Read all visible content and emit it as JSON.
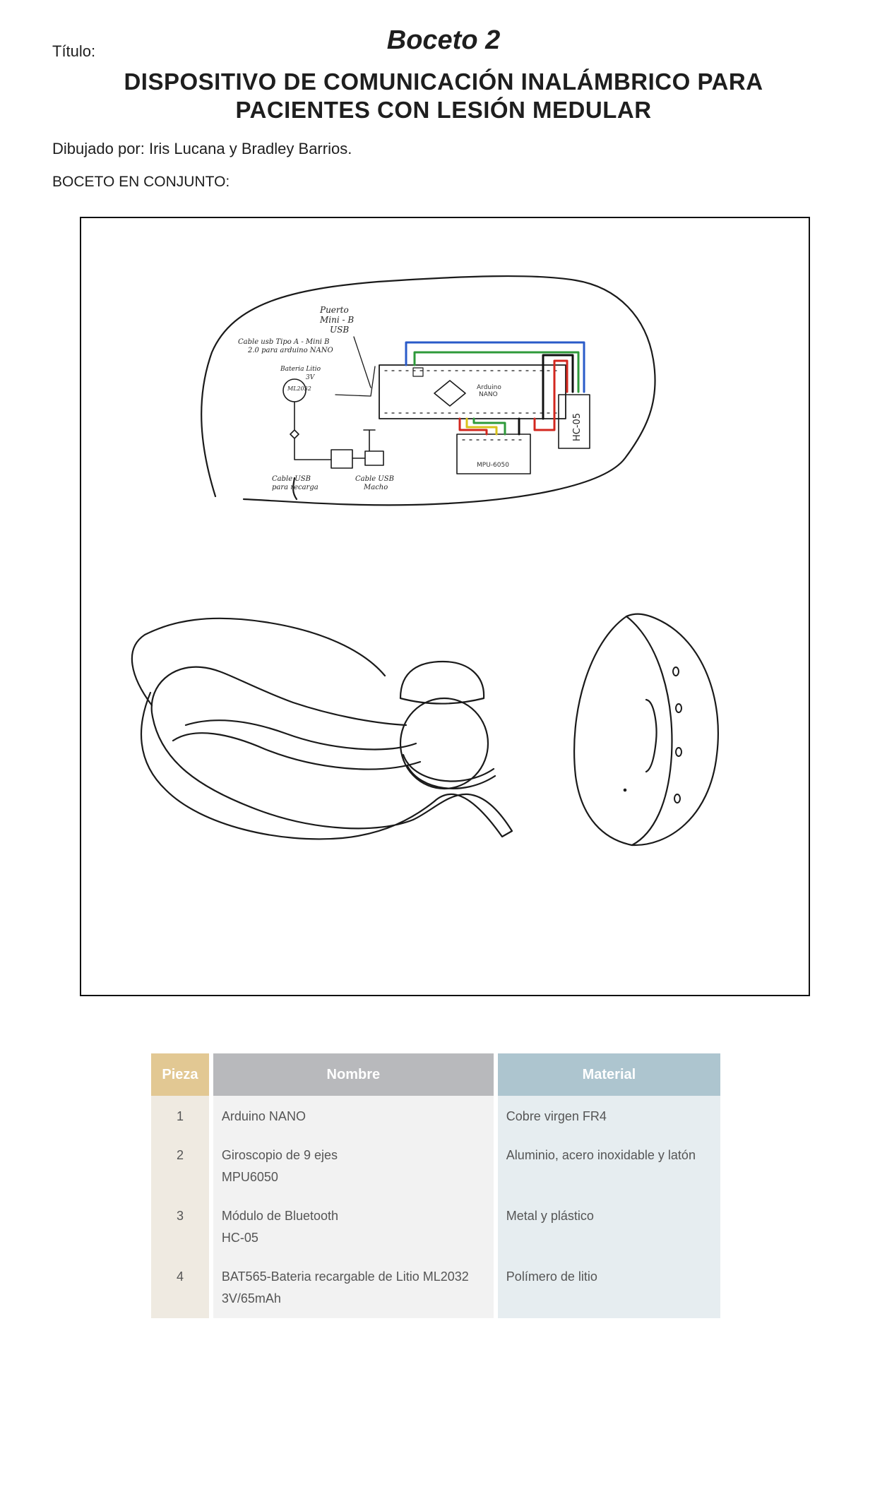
{
  "header": {
    "titulo_label": "Título:",
    "boceto": "Boceto 2",
    "title_line1": "DISPOSITIVO DE COMUNICACIÓN INALÁMBRICO PARA",
    "title_line2": "PACIENTES CON LESIÓN MEDULAR",
    "drawn_by": "Dibujado por: Iris Lucana y Bradley Barrios.",
    "section_label": "BOCETO EN CONJUNTO:"
  },
  "sketch_labels": {
    "puerto_1": "Puerto",
    "puerto_2": "Mini - B",
    "puerto_3": "USB",
    "cable_1": "Cable usb Tipo A - Mini B",
    "cable_2": "2.0 para arduino NANO",
    "bateria_1": "Bateria Litio",
    "bateria_2": "3V",
    "bateria_3": "ML2032",
    "arduino_1": "Arduino",
    "arduino_2": "NANO",
    "gyro": "MPU-6050",
    "bt": "HC-05",
    "cable_recarga_1": "Cable USB",
    "cable_recarga_2": "para recarga",
    "cable_macho_1": "Cable USB",
    "cable_macho_2": "Macho"
  },
  "table": {
    "headers": [
      "Pieza",
      "Nombre",
      "Material"
    ],
    "rows": [
      {
        "pieza": "1",
        "nombre_1": "Arduino NANO",
        "nombre_2": "",
        "material": "Cobre virgen FR4"
      },
      {
        "pieza": "2",
        "nombre_1": "Giroscopio de 9 ejes",
        "nombre_2": "MPU6050",
        "material": "Aluminio, acero inoxidable y latón"
      },
      {
        "pieza": "3",
        "nombre_1": "Módulo de Bluetooth",
        "nombre_2": "HC-05",
        "material": "Metal y plástico"
      },
      {
        "pieza": "4",
        "nombre_1": "BAT565-Bateria recargable de Litio ML2032",
        "nombre_2": "3V/65mAh",
        "material": "Polímero de litio"
      }
    ]
  },
  "colors": {
    "pieza_header": "#e2c893",
    "nombre_header": "#b8b9bc",
    "material_header": "#adc5cf",
    "wire_blue": "#2a5bc9",
    "wire_green": "#2e9a3a",
    "wire_red": "#d3271f",
    "wire_yellow": "#d9c21a"
  },
  "icons": [
    "sketch-illustration"
  ]
}
